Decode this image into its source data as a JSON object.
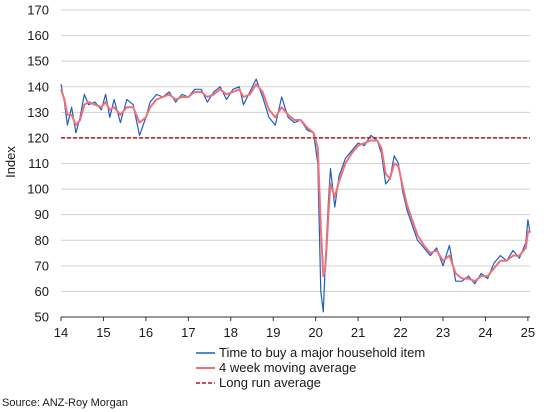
{
  "chart_data": {
    "type": "line",
    "ylabel": "Index",
    "ylim": [
      50,
      170
    ],
    "yticks": [
      50,
      60,
      70,
      80,
      90,
      100,
      110,
      120,
      130,
      140,
      150,
      160,
      170
    ],
    "xlim": [
      14,
      25.05
    ],
    "xticks": [
      "14",
      "15",
      "16",
      "17",
      "18",
      "19",
      "20",
      "21",
      "22",
      "23",
      "24",
      "25"
    ],
    "grid": "horizontal",
    "legend_position": "bottom",
    "source": "Source: ANZ-Roy Morgan",
    "series": [
      {
        "name": "Time to buy a major household item",
        "color": "#1f5fbf",
        "style": "solid",
        "x": [
          14.0,
          14.08,
          14.15,
          14.25,
          14.35,
          14.45,
          14.55,
          14.65,
          14.8,
          14.95,
          15.05,
          15.15,
          15.25,
          15.4,
          15.55,
          15.7,
          15.85,
          16.0,
          16.1,
          16.25,
          16.4,
          16.55,
          16.7,
          16.85,
          17.0,
          17.15,
          17.3,
          17.45,
          17.6,
          17.75,
          17.9,
          18.05,
          18.2,
          18.3,
          18.45,
          18.6,
          18.75,
          18.9,
          19.05,
          19.2,
          19.35,
          19.5,
          19.65,
          19.8,
          19.95,
          20.05,
          20.12,
          20.18,
          20.22,
          20.26,
          20.3,
          20.35,
          20.45,
          20.55,
          20.7,
          20.85,
          21.0,
          21.15,
          21.3,
          21.45,
          21.55,
          21.65,
          21.75,
          21.85,
          21.95,
          22.05,
          22.15,
          22.25,
          22.4,
          22.55,
          22.7,
          22.85,
          23.0,
          23.15,
          23.3,
          23.45,
          23.6,
          23.75,
          23.9,
          24.05,
          24.2,
          24.35,
          24.5,
          24.65,
          24.8,
          24.95,
          25.0,
          25.05
        ],
        "y": [
          141,
          134,
          125,
          132,
          122,
          128,
          137,
          133,
          134,
          131,
          137,
          128,
          135,
          126,
          135,
          133,
          121,
          128,
          134,
          137,
          136,
          138,
          134,
          137,
          136,
          139,
          139,
          134,
          138,
          140,
          135,
          139,
          140,
          133,
          138,
          143,
          136,
          128,
          125,
          136,
          128,
          126,
          127,
          123,
          122,
          110,
          60,
          52,
          68,
          82,
          95,
          108,
          93,
          105,
          112,
          115,
          118,
          117,
          121,
          119,
          114,
          102,
          104,
          113,
          110,
          99,
          92,
          87,
          80,
          77,
          74,
          77,
          70,
          78,
          64,
          64,
          66,
          63,
          67,
          65,
          71,
          74,
          72,
          76,
          73,
          79,
          88,
          83
        ]
      },
      {
        "name": "4 week moving average",
        "color": "#f07078",
        "style": "solid",
        "x": [
          14.0,
          14.08,
          14.15,
          14.25,
          14.35,
          14.45,
          14.55,
          14.65,
          14.8,
          14.95,
          15.05,
          15.15,
          15.25,
          15.4,
          15.55,
          15.7,
          15.85,
          16.0,
          16.1,
          16.25,
          16.4,
          16.55,
          16.7,
          16.85,
          17.0,
          17.15,
          17.3,
          17.45,
          17.6,
          17.75,
          17.9,
          18.05,
          18.2,
          18.3,
          18.45,
          18.6,
          18.75,
          18.9,
          19.05,
          19.2,
          19.35,
          19.5,
          19.65,
          19.8,
          19.95,
          20.05,
          20.12,
          20.18,
          20.22,
          20.26,
          20.3,
          20.35,
          20.45,
          20.55,
          20.7,
          20.85,
          21.0,
          21.15,
          21.3,
          21.45,
          21.55,
          21.65,
          21.75,
          21.85,
          21.95,
          22.05,
          22.15,
          22.25,
          22.4,
          22.55,
          22.7,
          22.85,
          23.0,
          23.15,
          23.3,
          23.45,
          23.6,
          23.75,
          23.9,
          24.05,
          24.2,
          24.35,
          24.5,
          24.65,
          24.8,
          24.95,
          25.0,
          25.05
        ],
        "y": [
          139,
          135,
          129,
          129,
          125,
          127,
          133,
          134,
          133,
          132,
          134,
          131,
          132,
          129,
          132,
          132,
          126,
          128,
          132,
          135,
          136,
          137,
          135,
          136,
          136,
          138,
          138,
          136,
          137,
          139,
          137,
          138,
          139,
          136,
          137,
          141,
          138,
          131,
          128,
          132,
          129,
          127,
          127,
          124,
          122,
          116,
          85,
          66,
          68,
          78,
          90,
          102,
          97,
          103,
          110,
          114,
          117,
          118,
          119,
          119,
          116,
          106,
          104,
          110,
          109,
          101,
          94,
          89,
          82,
          78,
          75,
          76,
          72,
          74,
          67,
          65,
          65,
          64,
          66,
          66,
          69,
          72,
          72,
          74,
          74,
          77,
          83,
          84
        ]
      },
      {
        "name": "Long run average",
        "color": "#c0141e",
        "style": "dashed",
        "value": 120
      }
    ]
  }
}
